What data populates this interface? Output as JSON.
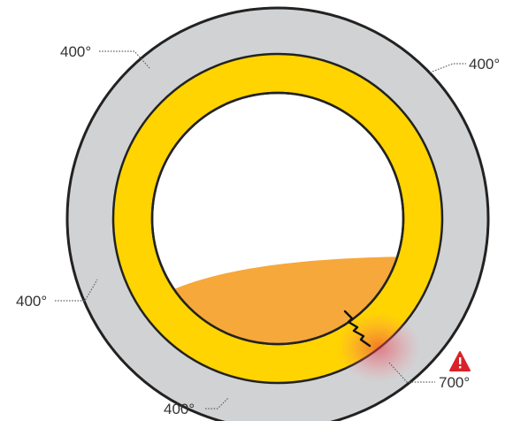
{
  "labels": {
    "top_left": "400°",
    "top_right": "400°",
    "left": "400°",
    "bottom": "400°",
    "hotspot": "700°"
  },
  "icons": {
    "warning": "warning-triangle-icon",
    "crack": "crack-icon"
  },
  "colors": {
    "outer_shell": "#d1d2d4",
    "refractory_lining": "#ffd400",
    "interior": "#ffffff",
    "molten_material": "#f6a83a",
    "hot_spot": "#e8323f",
    "warning": "#d8232a",
    "outline": "#222222"
  }
}
